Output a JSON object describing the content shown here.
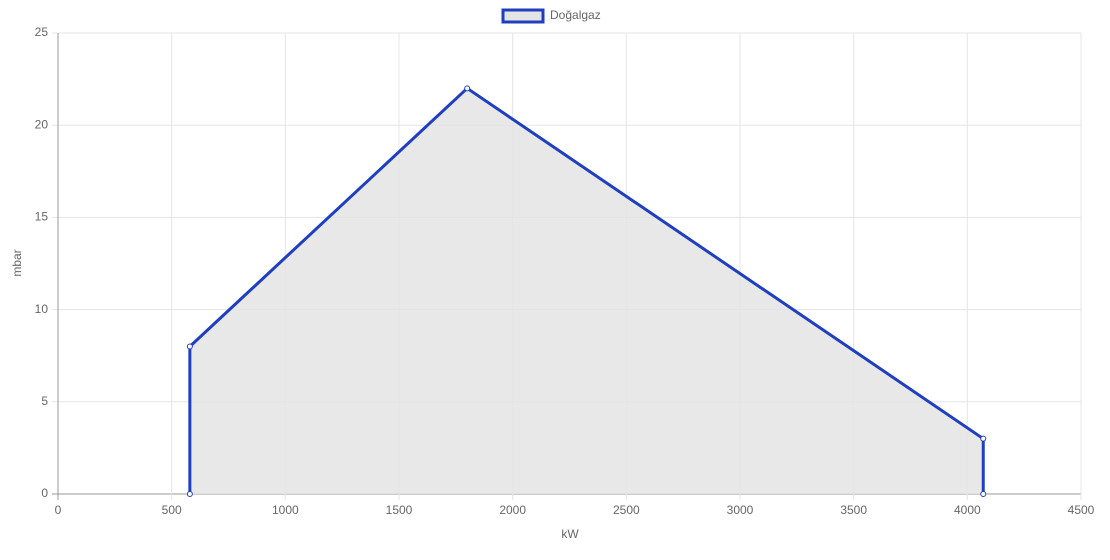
{
  "chart_data": {
    "type": "line",
    "x": [
      580,
      580,
      1800,
      4070,
      4070
    ],
    "series": [
      {
        "name": "Doğalgaz",
        "color": "#1f3fbf",
        "fill_color": "#e4e4e4",
        "values": [
          0,
          8,
          22,
          3,
          0
        ]
      }
    ],
    "x_label": "kW",
    "y_label": "mbar",
    "xlim": [
      0,
      4500
    ],
    "xticks": [
      0,
      500,
      1000,
      1500,
      2000,
      2500,
      3000,
      3500,
      4000,
      4500
    ],
    "ylim": [
      0,
      25
    ],
    "yticks": [
      0,
      5,
      10,
      15,
      20,
      25
    ],
    "grid": true,
    "legend": "top"
  }
}
